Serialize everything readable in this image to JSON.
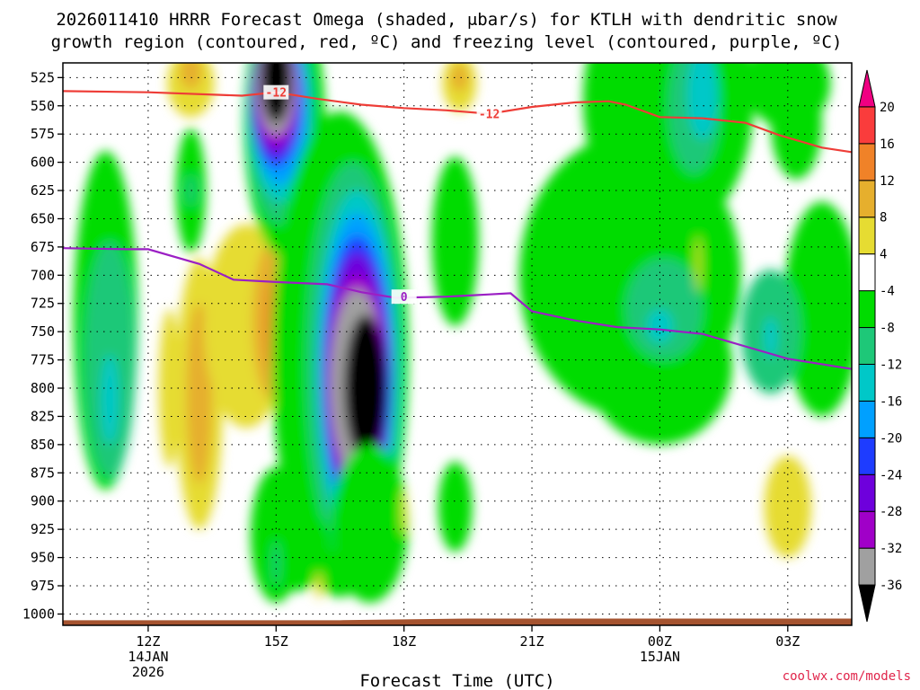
{
  "chart_data": {
    "type": "heatmap",
    "title_lines": [
      "2026011410 HRRR Forecast Omega (shaded, μbar/s) for KTLH with dendritic snow",
      "growth region (contoured, red, ºC) and freezing level (contoured, purple, ºC)"
    ],
    "xlabel": "Forecast Time (UTC)",
    "ylabel": "",
    "credit": "coolwx.com/models",
    "xlim": [
      10,
      28.5
    ],
    "ylim": [
      1010,
      512
    ],
    "y_ticks": [
      525,
      550,
      575,
      600,
      625,
      650,
      675,
      700,
      725,
      750,
      775,
      800,
      825,
      850,
      875,
      900,
      925,
      950,
      975,
      1000
    ],
    "x_ticks": [
      {
        "hour": 12,
        "lines": [
          "12Z",
          "14JAN",
          "2026"
        ]
      },
      {
        "hour": 15,
        "lines": [
          "15Z"
        ]
      },
      {
        "hour": 18,
        "lines": [
          "18Z"
        ]
      },
      {
        "hour": 21,
        "lines": [
          "21Z"
        ]
      },
      {
        "hour": 24,
        "lines": [
          "00Z",
          "15JAN"
        ]
      },
      {
        "hour": 27,
        "lines": [
          "03Z"
        ]
      }
    ],
    "colorbar": {
      "levels": [
        -36,
        -32,
        -28,
        -24,
        -20,
        -16,
        -12,
        -8,
        -4,
        4,
        8,
        12,
        16,
        20
      ],
      "labels": [
        "20",
        "16",
        "12",
        "8",
        "4",
        "-4",
        "-8",
        "-12",
        "-16",
        "-20",
        "-24",
        "-28",
        "-32",
        "-36"
      ],
      "colors": [
        "#000000",
        "#a0a0a0",
        "#a000c8",
        "#6e00dc",
        "#1e3cff",
        "#00a0ff",
        "#00c8c8",
        "#1ec878",
        "#00dc00",
        "#ffffff",
        "#e6dc32",
        "#e6af2d",
        "#f08228",
        "#fa3c3c",
        "#f00082"
      ]
    },
    "omega_cells": [
      {
        "t": 11.0,
        "p": 740,
        "rt": 0.75,
        "rp": 150,
        "v": -6
      },
      {
        "t": 11.1,
        "p": 775,
        "rt": 0.6,
        "rp": 105,
        "v": -10
      },
      {
        "t": 11.1,
        "p": 810,
        "rt": 0.2,
        "rp": 40,
        "v": -14
      },
      {
        "t": 13.2,
        "p": 805,
        "rt": 0.55,
        "rp": 120,
        "v": 6
      },
      {
        "t": 13.2,
        "p": 805,
        "rt": 0.3,
        "rp": 80,
        "v": 10
      },
      {
        "t": 12.5,
        "p": 800,
        "rt": 0.25,
        "rp": 70,
        "v": 6
      },
      {
        "t": 14.3,
        "p": 745,
        "rt": 1.0,
        "rp": 90,
        "v": 6
      },
      {
        "t": 14.9,
        "p": 740,
        "rt": 0.45,
        "rp": 70,
        "v": 10
      },
      {
        "t": 15.0,
        "p": 745,
        "rt": 0.25,
        "rp": 45,
        "v": 16
      },
      {
        "t": 13.0,
        "p": 530,
        "rt": 0.55,
        "rp": 30,
        "v": 6
      },
      {
        "t": 13.0,
        "p": 520,
        "rt": 0.25,
        "rp": 15,
        "v": 10
      },
      {
        "t": 19.3,
        "p": 530,
        "rt": 0.4,
        "rp": 25,
        "v": 6
      },
      {
        "t": 19.3,
        "p": 525,
        "rt": 0.2,
        "rp": 12,
        "v": 10
      },
      {
        "t": 13.0,
        "p": 625,
        "rt": 0.35,
        "rp": 55,
        "v": -6
      },
      {
        "t": 13.0,
        "p": 625,
        "rt": 0.1,
        "rp": 15,
        "v": -10
      },
      {
        "t": 15.2,
        "p": 565,
        "rt": 0.95,
        "rp": 120,
        "v": -6
      },
      {
        "t": 15.1,
        "p": 560,
        "rt": 0.75,
        "rp": 95,
        "v": -10
      },
      {
        "t": 15.1,
        "p": 555,
        "rt": 0.7,
        "rp": 80,
        "v": -14
      },
      {
        "t": 15.1,
        "p": 550,
        "rt": 0.65,
        "rp": 70,
        "v": -18
      },
      {
        "t": 15.0,
        "p": 545,
        "rt": 0.6,
        "rp": 60,
        "v": -22
      },
      {
        "t": 15.0,
        "p": 540,
        "rt": 0.55,
        "rp": 55,
        "v": -26
      },
      {
        "t": 15.0,
        "p": 535,
        "rt": 0.5,
        "rp": 50,
        "v": -30
      },
      {
        "t": 15.0,
        "p": 530,
        "rt": 0.45,
        "rp": 45,
        "v": -34
      },
      {
        "t": 15.0,
        "p": 525,
        "rt": 0.35,
        "rp": 40,
        "v": -40
      },
      {
        "t": 16.5,
        "p": 770,
        "rt": 1.6,
        "rp": 215,
        "v": -6
      },
      {
        "t": 16.8,
        "p": 780,
        "rt": 1.1,
        "rp": 180,
        "v": -10
      },
      {
        "t": 16.9,
        "p": 785,
        "rt": 0.95,
        "rp": 160,
        "v": -14
      },
      {
        "t": 16.9,
        "p": 785,
        "rt": 0.85,
        "rp": 140,
        "v": -18
      },
      {
        "t": 16.9,
        "p": 790,
        "rt": 0.8,
        "rp": 125,
        "v": -22
      },
      {
        "t": 16.9,
        "p": 790,
        "rt": 0.75,
        "rp": 110,
        "v": -26
      },
      {
        "t": 16.9,
        "p": 795,
        "rt": 0.7,
        "rp": 95,
        "v": -30
      },
      {
        "t": 16.9,
        "p": 795,
        "rt": 0.62,
        "rp": 82,
        "v": -34
      },
      {
        "t": 17.1,
        "p": 800,
        "rt": 0.5,
        "rp": 65,
        "v": -40
      },
      {
        "t": 17.2,
        "p": 920,
        "rt": 0.9,
        "rp": 70,
        "v": -6
      },
      {
        "t": 15.4,
        "p": 940,
        "rt": 0.9,
        "rp": 40,
        "v": -6
      },
      {
        "t": 15.0,
        "p": 930,
        "rt": 0.6,
        "rp": 60,
        "v": -6
      },
      {
        "t": 15.0,
        "p": 955,
        "rt": 0.08,
        "rp": 20,
        "v": -10
      },
      {
        "t": 16.0,
        "p": 975,
        "rt": 0.08,
        "rp": 12,
        "v": 6
      },
      {
        "t": 18.0,
        "p": 910,
        "rt": 0.06,
        "rp": 20,
        "v": 6
      },
      {
        "t": 19.2,
        "p": 670,
        "rt": 0.55,
        "rp": 75,
        "v": -6
      },
      {
        "t": 19.2,
        "p": 905,
        "rt": 0.4,
        "rp": 40,
        "v": -6
      },
      {
        "t": 23.3,
        "p": 700,
        "rt": 2.6,
        "rp": 125,
        "v": -6
      },
      {
        "t": 24.0,
        "p": 780,
        "rt": 1.7,
        "rp": 70,
        "v": -6
      },
      {
        "t": 24.2,
        "p": 545,
        "rt": 2.0,
        "rp": 120,
        "v": -6
      },
      {
        "t": 24.8,
        "p": 550,
        "rt": 0.6,
        "rp": 60,
        "v": -10
      },
      {
        "t": 25.0,
        "p": 540,
        "rt": 0.35,
        "rp": 40,
        "v": -14
      },
      {
        "t": 24.1,
        "p": 730,
        "rt": 0.9,
        "rp": 45,
        "v": -10
      },
      {
        "t": 24.0,
        "p": 745,
        "rt": 0.3,
        "rp": 15,
        "v": -14
      },
      {
        "t": 27.8,
        "p": 730,
        "rt": 0.9,
        "rp": 95,
        "v": -6
      },
      {
        "t": 26.6,
        "p": 750,
        "rt": 0.7,
        "rp": 55,
        "v": -10
      },
      {
        "t": 26.6,
        "p": 755,
        "rt": 0.15,
        "rp": 18,
        "v": -14
      },
      {
        "t": 27.0,
        "p": 530,
        "rt": 1.0,
        "rp": 40,
        "v": -6
      },
      {
        "t": 27.2,
        "p": 565,
        "rt": 0.6,
        "rp": 50,
        "v": -6
      },
      {
        "t": 24.9,
        "p": 690,
        "rt": 0.05,
        "rp": 25,
        "v": 6
      },
      {
        "t": 27.0,
        "p": 905,
        "rt": 0.55,
        "rp": 45,
        "v": 6
      }
    ],
    "contours": [
      {
        "name": "dendritic-snow-growth",
        "label": "-12",
        "color": "#ee3d37",
        "points": [
          [
            10.0,
            537
          ],
          [
            12.0,
            538
          ],
          [
            14.2,
            541
          ],
          [
            15.0,
            538
          ],
          [
            16.0,
            544
          ],
          [
            17.0,
            549
          ],
          [
            18.0,
            552
          ],
          [
            19.0,
            554
          ],
          [
            20.0,
            557
          ],
          [
            21.0,
            551
          ],
          [
            22.0,
            547
          ],
          [
            22.8,
            546
          ],
          [
            23.2,
            549
          ],
          [
            24.0,
            560
          ],
          [
            25.0,
            561
          ],
          [
            26.0,
            565
          ],
          [
            26.8,
            576
          ],
          [
            27.8,
            587
          ],
          [
            28.5,
            591
          ]
        ],
        "labels_at": [
          [
            15.0,
            538
          ],
          [
            20.0,
            557
          ]
        ]
      },
      {
        "name": "freezing-level",
        "label": "0",
        "color": "#9b1fc4",
        "points": [
          [
            10.0,
            676
          ],
          [
            11.5,
            677
          ],
          [
            12.0,
            677
          ],
          [
            13.2,
            690
          ],
          [
            14.0,
            704
          ],
          [
            15.0,
            706
          ],
          [
            16.2,
            708
          ],
          [
            17.0,
            715
          ],
          [
            17.8,
            720
          ],
          [
            19.0,
            719
          ],
          [
            20.0,
            717
          ],
          [
            20.5,
            716
          ],
          [
            21.0,
            732
          ],
          [
            22.0,
            740
          ],
          [
            23.0,
            746
          ],
          [
            24.0,
            748
          ],
          [
            25.0,
            752
          ],
          [
            26.0,
            763
          ],
          [
            27.0,
            774
          ],
          [
            28.5,
            783
          ]
        ],
        "labels_at": [
          [
            18.0,
            719
          ]
        ]
      }
    ],
    "terrain_color": "#a5532f"
  }
}
